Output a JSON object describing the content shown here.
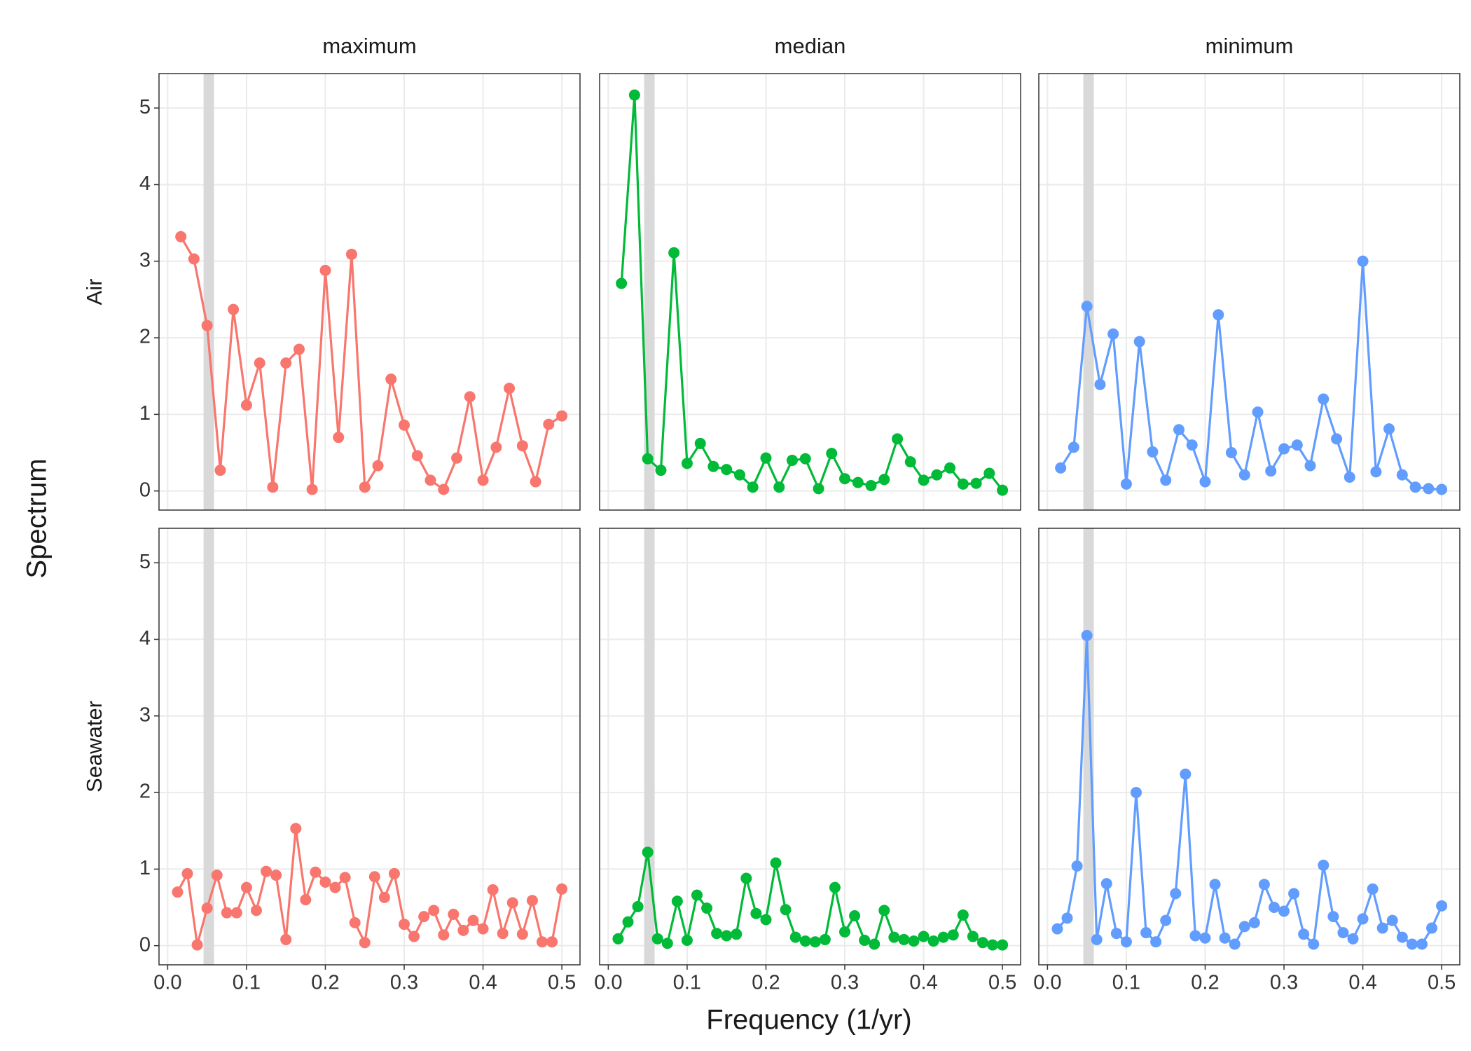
{
  "chart_data": {
    "type": "line",
    "xlabel": "Frequency (1/yr)",
    "ylabel": "Spectrum",
    "columns": [
      "maximum",
      "median",
      "minimum"
    ],
    "rows": [
      "Air",
      "Seawater"
    ],
    "colors": [
      "#F8766D",
      "#00BA38",
      "#619CFF"
    ],
    "band": [
      0.0455,
      0.0588
    ],
    "band_color": "#d9d9d9",
    "grid": true,
    "xlim": [
      -0.011,
      0.523
    ],
    "ylim": [
      -0.25,
      5.45
    ],
    "xticks": [
      {
        "value": 0,
        "label": "0.0"
      },
      0.1,
      0.2,
      0.3,
      0.4,
      0.5
    ],
    "yticks": [
      0,
      1,
      2,
      3,
      4,
      5
    ],
    "panels": [
      {
        "x": [
          0.0167,
          0.0333,
          0.05,
          0.0667,
          0.0833,
          0.1,
          0.1167,
          0.1333,
          0.15,
          0.1667,
          0.1833,
          0.2,
          0.2167,
          0.2333,
          0.25,
          0.2667,
          0.2833,
          0.3,
          0.3167,
          0.3333,
          0.35,
          0.3667,
          0.3833,
          0.4,
          0.4167,
          0.4333,
          0.45,
          0.4667,
          0.4833,
          0.5
        ],
        "values": [
          3.32,
          3.03,
          2.16,
          0.27,
          2.37,
          1.12,
          1.67,
          0.05,
          1.67,
          1.85,
          0.02,
          2.88,
          0.7,
          3.09,
          0.05,
          0.33,
          1.46,
          0.86,
          0.46,
          0.14,
          0.02,
          0.43,
          1.23,
          0.14,
          0.57,
          1.34,
          0.59,
          0.12,
          0.87,
          0.98
        ]
      },
      {
        "x": [
          0.0167,
          0.0333,
          0.05,
          0.0667,
          0.0833,
          0.1,
          0.1167,
          0.1333,
          0.15,
          0.1667,
          0.1833,
          0.2,
          0.2167,
          0.2333,
          0.25,
          0.2667,
          0.2833,
          0.3,
          0.3167,
          0.3333,
          0.35,
          0.3667,
          0.3833,
          0.4,
          0.4167,
          0.4333,
          0.45,
          0.4667,
          0.4833,
          0.5
        ],
        "values": [
          2.71,
          5.17,
          0.42,
          0.27,
          3.11,
          0.36,
          0.62,
          0.32,
          0.28,
          0.21,
          0.05,
          0.43,
          0.05,
          0.4,
          0.42,
          0.03,
          0.49,
          0.16,
          0.11,
          0.07,
          0.15,
          0.68,
          0.38,
          0.14,
          0.21,
          0.3,
          0.09,
          0.1,
          0.23,
          0.01
        ]
      },
      {
        "x": [
          0.0167,
          0.0333,
          0.05,
          0.0667,
          0.0833,
          0.1,
          0.1167,
          0.1333,
          0.15,
          0.1667,
          0.1833,
          0.2,
          0.2167,
          0.2333,
          0.25,
          0.2667,
          0.2833,
          0.3,
          0.3167,
          0.3333,
          0.35,
          0.3667,
          0.3833,
          0.4,
          0.4167,
          0.4333,
          0.45,
          0.4667,
          0.4833,
          0.5
        ],
        "values": [
          0.3,
          0.57,
          2.41,
          1.39,
          2.05,
          0.09,
          1.95,
          0.51,
          0.14,
          0.8,
          0.6,
          0.12,
          2.3,
          0.5,
          0.21,
          1.03,
          0.26,
          0.55,
          0.6,
          0.33,
          1.2,
          0.68,
          0.18,
          3.0,
          0.25,
          0.81,
          0.21,
          0.05,
          0.03,
          0.02
        ]
      },
      {
        "x": [
          0.0125,
          0.025,
          0.0375,
          0.05,
          0.0625,
          0.075,
          0.0875,
          0.1,
          0.1125,
          0.125,
          0.1375,
          0.15,
          0.1625,
          0.175,
          0.1875,
          0.2,
          0.2125,
          0.225,
          0.2375,
          0.25,
          0.2625,
          0.275,
          0.2875,
          0.3,
          0.3125,
          0.325,
          0.3375,
          0.35,
          0.3625,
          0.375,
          0.3875,
          0.4,
          0.4125,
          0.425,
          0.4375,
          0.45,
          0.4625,
          0.475,
          0.4875,
          0.5
        ],
        "values": [
          0.7,
          0.94,
          0.01,
          0.49,
          0.92,
          0.43,
          0.43,
          0.76,
          0.46,
          0.97,
          0.92,
          0.08,
          1.53,
          0.6,
          0.96,
          0.83,
          0.76,
          0.89,
          0.3,
          0.04,
          0.9,
          0.63,
          0.94,
          0.28,
          0.12,
          0.38,
          0.46,
          0.14,
          0.41,
          0.2,
          0.33,
          0.22,
          0.73,
          0.16,
          0.56,
          0.15,
          0.59,
          0.05,
          0.05,
          0.74
        ]
      },
      {
        "x": [
          0.0125,
          0.025,
          0.0375,
          0.05,
          0.0625,
          0.075,
          0.0875,
          0.1,
          0.1125,
          0.125,
          0.1375,
          0.15,
          0.1625,
          0.175,
          0.1875,
          0.2,
          0.2125,
          0.225,
          0.2375,
          0.25,
          0.2625,
          0.275,
          0.2875,
          0.3,
          0.3125,
          0.325,
          0.3375,
          0.35,
          0.3625,
          0.375,
          0.3875,
          0.4,
          0.4125,
          0.425,
          0.4375,
          0.45,
          0.4625,
          0.475,
          0.4875,
          0.5
        ],
        "values": [
          0.09,
          0.31,
          0.51,
          1.22,
          0.09,
          0.03,
          0.58,
          0.07,
          0.66,
          0.49,
          0.16,
          0.13,
          0.15,
          0.88,
          0.42,
          0.34,
          1.08,
          0.47,
          0.11,
          0.06,
          0.05,
          0.08,
          0.76,
          0.18,
          0.39,
          0.07,
          0.02,
          0.46,
          0.11,
          0.08,
          0.06,
          0.12,
          0.06,
          0.11,
          0.14,
          0.4,
          0.12,
          0.04,
          0.01,
          0.01
        ]
      },
      {
        "x": [
          0.0125,
          0.025,
          0.0375,
          0.05,
          0.0625,
          0.075,
          0.0875,
          0.1,
          0.1125,
          0.125,
          0.1375,
          0.15,
          0.1625,
          0.175,
          0.1875,
          0.2,
          0.2125,
          0.225,
          0.2375,
          0.25,
          0.2625,
          0.275,
          0.2875,
          0.3,
          0.3125,
          0.325,
          0.3375,
          0.35,
          0.3625,
          0.375,
          0.3875,
          0.4,
          0.4125,
          0.425,
          0.4375,
          0.45,
          0.4625,
          0.475,
          0.4875,
          0.5
        ],
        "values": [
          0.22,
          0.36,
          1.04,
          4.05,
          0.08,
          0.81,
          0.16,
          0.05,
          2.0,
          0.17,
          0.05,
          0.33,
          0.68,
          2.24,
          0.13,
          0.1,
          0.8,
          0.1,
          0.02,
          0.25,
          0.3,
          0.8,
          0.5,
          0.45,
          0.68,
          0.15,
          0.02,
          1.05,
          0.38,
          0.17,
          0.09,
          0.35,
          0.74,
          0.23,
          0.33,
          0.11,
          0.02,
          0.02,
          0.23,
          0.52
        ]
      }
    ]
  }
}
